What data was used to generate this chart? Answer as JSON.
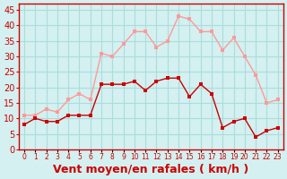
{
  "hours": [
    0,
    1,
    2,
    3,
    4,
    5,
    6,
    7,
    8,
    9,
    10,
    11,
    12,
    13,
    14,
    15,
    16,
    17,
    18,
    19,
    20,
    21,
    22,
    23
  ],
  "wind_avg": [
    8,
    10,
    9,
    9,
    11,
    11,
    11,
    21,
    21,
    21,
    22,
    19,
    22,
    23,
    23,
    17,
    21,
    18,
    7,
    9,
    10,
    4,
    6,
    7
  ],
  "wind_gust": [
    11,
    11,
    13,
    12,
    16,
    18,
    16,
    31,
    30,
    34,
    38,
    38,
    33,
    35,
    43,
    42,
    38,
    38,
    32,
    36,
    30,
    24,
    15,
    16
  ],
  "bg_color": "#d4f0f0",
  "grid_color": "#aadddd",
  "line_avg_color": "#cc0000",
  "line_gust_color": "#ff9999",
  "marker_size": 3,
  "xlabel": "Vent moyen/en rafales ( km/h )",
  "xlabel_color": "#cc0000",
  "xlabel_fontsize": 9,
  "yticks": [
    0,
    5,
    10,
    15,
    20,
    25,
    30,
    35,
    40,
    45
  ],
  "ylim": [
    0,
    47
  ],
  "xlim": [
    -0.5,
    23.5
  ]
}
